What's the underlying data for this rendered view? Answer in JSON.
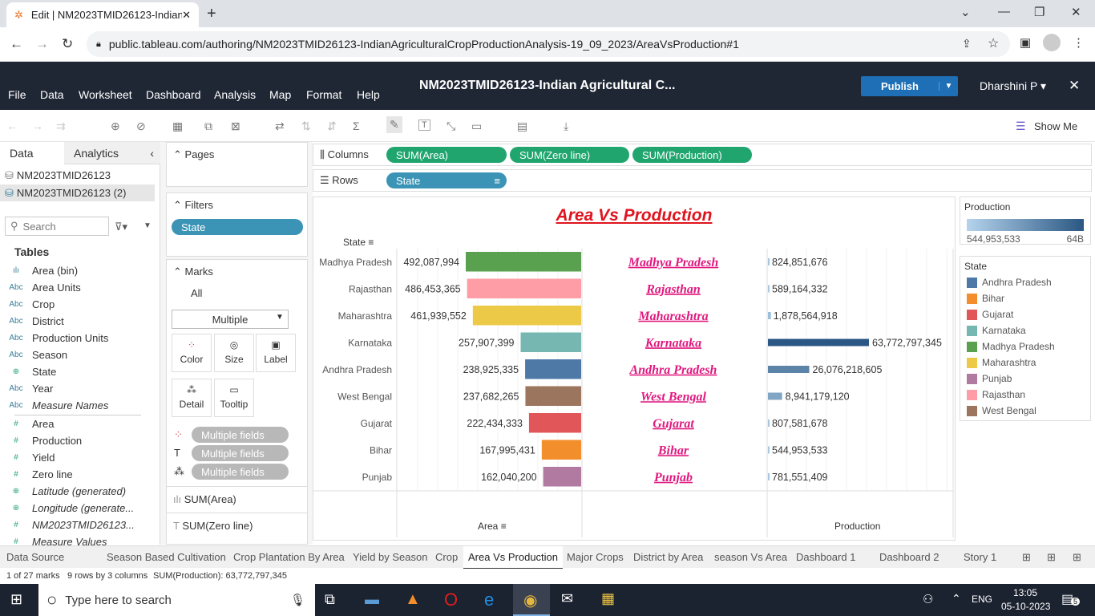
{
  "browser": {
    "tab_title": "Edit | NM2023TMID26123-Indian",
    "url": "public.tableau.com/authoring/NM2023TMID26123-IndianAgriculturalCropProductionAnalysis-19_09_2023/AreaVsProduction#1"
  },
  "app": {
    "menus": [
      "File",
      "Data",
      "Worksheet",
      "Dashboard",
      "Analysis",
      "Map",
      "Format",
      "Help"
    ],
    "workbook_title": "NM2023TMID26123-Indian Agricultural C...",
    "publish_label": "Publish",
    "user": "Dharshini P",
    "show_me": "Show Me"
  },
  "left_pane": {
    "tabs": [
      "Data",
      "Analytics"
    ],
    "sources": [
      "NM2023TMID26123",
      "NM2023TMID26123 (2)"
    ],
    "search_placeholder": "Search",
    "tables_heading": "Tables",
    "dimensions": [
      {
        "icon": "bin-icon",
        "label": "Area (bin)"
      },
      {
        "icon": "abc-icon",
        "label": "Area Units"
      },
      {
        "icon": "abc-icon",
        "label": "Crop"
      },
      {
        "icon": "abc-icon",
        "label": "District"
      },
      {
        "icon": "abc-icon",
        "label": "Production Units"
      },
      {
        "icon": "abc-icon",
        "label": "Season"
      },
      {
        "icon": "globe-icon",
        "label": "State"
      },
      {
        "icon": "abc-icon",
        "label": "Year"
      },
      {
        "icon": "abc-icon",
        "label": "Measure Names"
      }
    ],
    "measures": [
      {
        "icon": "hash-icon",
        "label": "Area"
      },
      {
        "icon": "hash-icon",
        "label": "Production"
      },
      {
        "icon": "hash-icon",
        "label": "Yield"
      },
      {
        "icon": "hash-icon",
        "label": "Zero line"
      },
      {
        "icon": "globe-icon",
        "label": "Latitude (generated)"
      },
      {
        "icon": "globe-icon",
        "label": "Longitude (generate..."
      },
      {
        "icon": "hash-icon",
        "label": "NM2023TMID26123..."
      },
      {
        "icon": "hash-icon",
        "label": "Measure Values"
      }
    ]
  },
  "cards": {
    "pages": "Pages",
    "filters": "Filters",
    "filter_pill": "State",
    "marks": "Marks",
    "marks_all": "All",
    "mark_type": "Multiple",
    "mark_buttons": [
      "Color",
      "Size",
      "Label",
      "Detail",
      "Tooltip"
    ],
    "mark_fields": [
      "Multiple fields",
      "Multiple fields",
      "Multiple fields"
    ],
    "measure_cards": [
      "SUM(Area)",
      "SUM(Zero line)"
    ]
  },
  "shelves": {
    "columns_label": "Columns",
    "rows_label": "Rows",
    "columns": [
      "SUM(Area)",
      "SUM(Zero line)",
      "SUM(Production)"
    ],
    "rows": [
      "State"
    ]
  },
  "view": {
    "title": "Area Vs Production",
    "row_header": "State",
    "area_axis": "Area",
    "production_axis": "Production"
  },
  "chart_data": {
    "type": "bar",
    "title": "Area Vs Production",
    "categories": [
      "Madhya Pradesh",
      "Rajasthan",
      "Maharashtra",
      "Karnataka",
      "Andhra Pradesh",
      "West Bengal",
      "Gujarat",
      "Bihar",
      "Punjab"
    ],
    "series": [
      {
        "name": "Area",
        "values": [
          492087994,
          486453365,
          461939552,
          257907399,
          238925335,
          237682265,
          222434333,
          167995431,
          162040200
        ],
        "labels": [
          "492,087,994",
          "486,453,365",
          "461,939,552",
          "257,907,399",
          "238,925,335",
          "237,682,265",
          "222,434,333",
          "167,995,431",
          "162,040,200"
        ]
      },
      {
        "name": "Production",
        "values": [
          824851676,
          589164332,
          1878564918,
          63772797345,
          26076218605,
          8941179120,
          807581678,
          544953533,
          781551409
        ],
        "labels": [
          "824,851,676",
          "589,164,332",
          "1,878,564,918",
          "63,772,797,345",
          "26,076,218,605",
          "8,941,179,120",
          "807,581,678",
          "544,953,533",
          "781,551,409"
        ]
      }
    ],
    "colors": [
      "#59a14f",
      "#ff9da7",
      "#edc948",
      "#76b7b2",
      "#4e79a7",
      "#9c755f",
      "#e15759",
      "#f28e2b",
      "#b07aa1"
    ]
  },
  "legends": {
    "production_title": "Production",
    "production_min": "544,953,533",
    "production_max": "64B",
    "state_title": "State",
    "states": [
      {
        "label": "Andhra Pradesh",
        "color": "#4e79a7"
      },
      {
        "label": "Bihar",
        "color": "#f28e2b"
      },
      {
        "label": "Gujarat",
        "color": "#e15759"
      },
      {
        "label": "Karnataka",
        "color": "#76b7b2"
      },
      {
        "label": "Madhya Pradesh",
        "color": "#59a14f"
      },
      {
        "label": "Maharashtra",
        "color": "#edc948"
      },
      {
        "label": "Punjab",
        "color": "#b07aa1"
      },
      {
        "label": "Rajasthan",
        "color": "#ff9da7"
      },
      {
        "label": "West Bengal",
        "color": "#9c755f"
      }
    ]
  },
  "sheet_tabs": [
    "Data Source",
    "Season Based Cultivation",
    "Crop Plantation By Area",
    "Yield by Season",
    "Crop",
    "Area Vs Production",
    "Major Crops",
    "District by Area",
    "season Vs Area",
    "Dashboard 1",
    "Dashboard 2",
    "Story 1"
  ],
  "active_tab": "Area Vs Production",
  "status": {
    "marks": "1 of 27 marks",
    "dims": "9 rows by 3 columns",
    "sum": "SUM(Production): 63,772,797,345"
  },
  "taskbar": {
    "search_placeholder": "Type here to search",
    "lang": "ENG",
    "time": "13:05",
    "date": "05-10-2023",
    "notifications": "5"
  }
}
